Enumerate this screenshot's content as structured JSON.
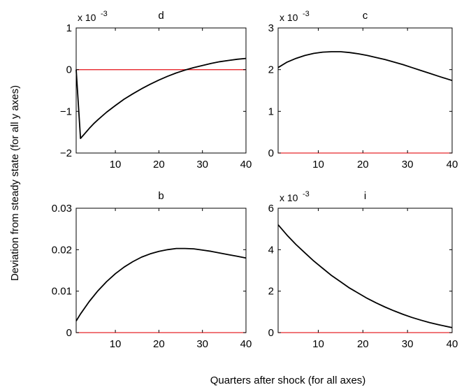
{
  "figure": {
    "ylabel": "Deviation from steady state (for all y axes)",
    "xlabel": "Quarters after shock (for all axes)"
  },
  "colors": {
    "series": "#000000",
    "zero_line": "#e8262b",
    "axes": "#000000",
    "background": "#ffffff"
  },
  "chart_data": [
    {
      "type": "line",
      "title": "d",
      "multiplier_label": "x 10",
      "multiplier_exponent": "-3",
      "xlim": [
        1,
        40
      ],
      "ylim": [
        -2,
        1
      ],
      "xticks": [
        10,
        20,
        30,
        40
      ],
      "yticks": [
        -2,
        -1,
        0,
        1
      ],
      "ytick_labels": [
        "−2",
        "−1",
        "0",
        "1"
      ],
      "grid": false,
      "series": [
        {
          "x": [
            1,
            2,
            3,
            4,
            5,
            6,
            8,
            10,
            12,
            14,
            16,
            18,
            20,
            22,
            24,
            26,
            28,
            30,
            32,
            34,
            36,
            38,
            40
          ],
          "values": [
            0,
            -1.65,
            -1.53,
            -1.41,
            -1.3,
            -1.2,
            -1.02,
            -0.86,
            -0.71,
            -0.58,
            -0.46,
            -0.35,
            -0.25,
            -0.16,
            -0.08,
            -0.01,
            0.05,
            0.1,
            0.15,
            0.19,
            0.22,
            0.25,
            0.27
          ]
        }
      ],
      "zero_line": 0
    },
    {
      "type": "line",
      "title": "c",
      "multiplier_label": "x 10",
      "multiplier_exponent": "-3",
      "xlim": [
        1,
        40
      ],
      "ylim": [
        0,
        3
      ],
      "xticks": [
        10,
        20,
        30,
        40
      ],
      "yticks": [
        0,
        1,
        2,
        3
      ],
      "ytick_labels": [
        "0",
        "1",
        "2",
        "3"
      ],
      "grid": false,
      "series": [
        {
          "x": [
            1,
            3,
            5,
            7,
            9,
            11,
            13,
            15,
            17,
            19,
            21,
            23,
            25,
            27,
            29,
            31,
            33,
            35,
            37,
            40
          ],
          "values": [
            2.05,
            2.18,
            2.27,
            2.34,
            2.39,
            2.42,
            2.43,
            2.43,
            2.41,
            2.38,
            2.34,
            2.29,
            2.24,
            2.18,
            2.12,
            2.05,
            1.98,
            1.91,
            1.84,
            1.74
          ]
        }
      ],
      "zero_line": 0
    },
    {
      "type": "line",
      "title": "b",
      "multiplier_label": "",
      "multiplier_exponent": "",
      "xlim": [
        1,
        40
      ],
      "ylim": [
        0,
        0.03
      ],
      "xticks": [
        10,
        20,
        30,
        40
      ],
      "yticks": [
        0,
        0.01,
        0.02,
        0.03
      ],
      "ytick_labels": [
        "0",
        "0.01",
        "0.02",
        "0.03"
      ],
      "grid": false,
      "series": [
        {
          "x": [
            1,
            2,
            4,
            6,
            8,
            10,
            12,
            14,
            16,
            18,
            20,
            22,
            24,
            26,
            28,
            30,
            32,
            34,
            36,
            38,
            40
          ],
          "values": [
            0.0028,
            0.0045,
            0.0075,
            0.0101,
            0.0123,
            0.0142,
            0.0158,
            0.0171,
            0.0182,
            0.019,
            0.0196,
            0.02,
            0.0203,
            0.0203,
            0.0202,
            0.0199,
            0.0196,
            0.0192,
            0.0188,
            0.0184,
            0.018
          ]
        }
      ],
      "zero_line": 0
    },
    {
      "type": "line",
      "title": "i",
      "multiplier_label": "x 10",
      "multiplier_exponent": "-3",
      "xlim": [
        1,
        40
      ],
      "ylim": [
        0,
        6
      ],
      "xticks": [
        10,
        20,
        30,
        40
      ],
      "yticks": [
        0,
        2,
        4,
        6
      ],
      "ytick_labels": [
        "0",
        "2",
        "4",
        "6"
      ],
      "grid": false,
      "series": [
        {
          "x": [
            1,
            3,
            5,
            7,
            9,
            11,
            13,
            15,
            17,
            19,
            21,
            23,
            25,
            27,
            29,
            31,
            33,
            35,
            37,
            40
          ],
          "values": [
            5.2,
            4.7,
            4.25,
            3.85,
            3.45,
            3.1,
            2.75,
            2.45,
            2.15,
            1.9,
            1.65,
            1.43,
            1.23,
            1.05,
            0.88,
            0.73,
            0.6,
            0.48,
            0.38,
            0.24
          ]
        }
      ],
      "zero_line": 0
    }
  ]
}
